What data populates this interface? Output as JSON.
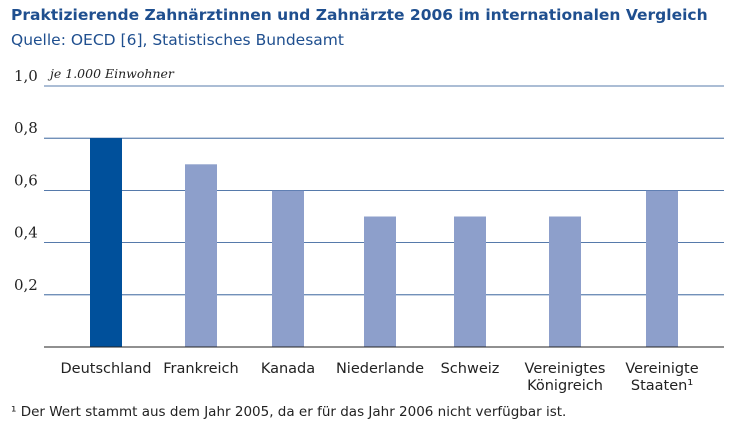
{
  "chart_data": {
    "type": "bar",
    "title": "Praktizierende Zahnärztinnen und Zahnärzte 2006 im internationalen Vergleich",
    "subtitle": "Quelle: OECD [6], Statistisches Bundesamt",
    "ylabel": "je 1.000 Einwohner",
    "ylim": [
      0,
      1.0
    ],
    "yticks": [
      "0,2",
      "0,4",
      "0,6",
      "0,8",
      "1,0"
    ],
    "grid": true,
    "categories": [
      [
        "Deutschland"
      ],
      [
        "Frankreich"
      ],
      [
        "Kanada"
      ],
      [
        "Niederlande"
      ],
      [
        "Schweiz"
      ],
      [
        "Vereinigtes",
        "Königreich"
      ],
      [
        "Vereinigte",
        "Staaten¹"
      ]
    ],
    "values": [
      0.8,
      0.7,
      0.6,
      0.5,
      0.5,
      0.5,
      0.6
    ],
    "highlight_index": 0,
    "colors": {
      "highlight": "#00509b",
      "bar": "#8d9fcb",
      "grid": "#1f4f8f",
      "axis": "#222222"
    }
  },
  "footnote": "¹ Der Wert stammt aus dem Jahr 2005, da er für das Jahr 2006 nicht verfügbar ist."
}
